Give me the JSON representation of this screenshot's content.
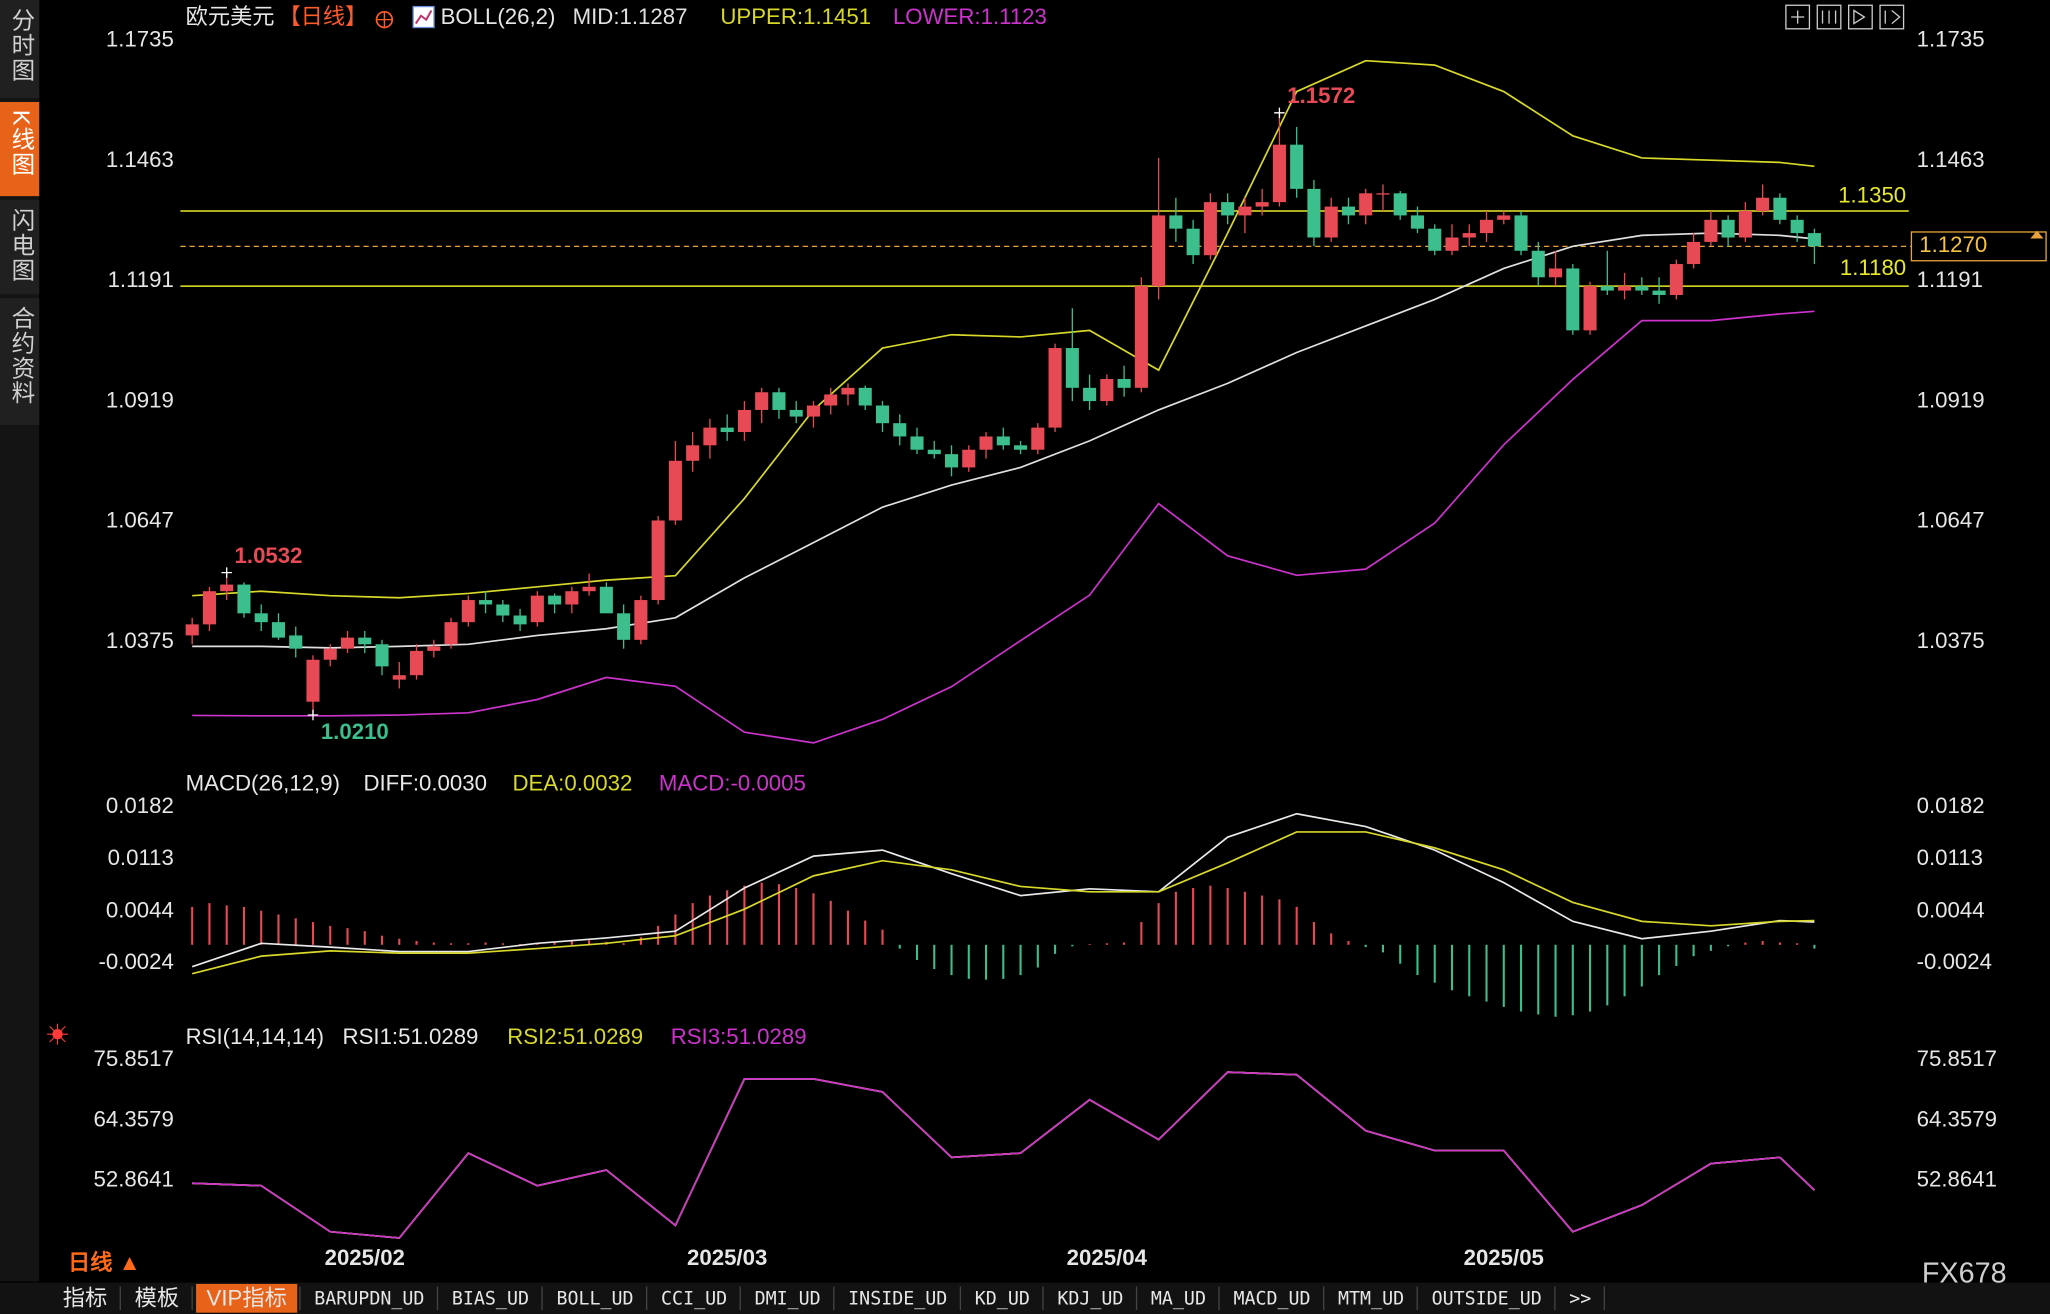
{
  "ui": {
    "side_tabs": [
      "分时图",
      "K线图",
      "闪电图",
      "合约资料"
    ],
    "active_side_tab": 1,
    "bottom_tabs": [
      "指标",
      "模板",
      "VIP指标",
      "BARUPDN_UD",
      "BIAS_UD",
      "BOLL_UD",
      "CCI_UD",
      "DMI_UD",
      "INSIDE_UD",
      "KD_UD",
      "KDJ_UD",
      "MA_UD",
      "MACD_UD",
      "MTM_UD",
      "OUTSIDE_UD",
      ">>"
    ],
    "active_bottom_tab": 2,
    "timeframe": "日线 ▲",
    "watermark": "FX678"
  },
  "chart_data": [
    {
      "type": "candlestick",
      "title": "欧元美元",
      "period": "【日线】",
      "indicator": "BOLL(26,2)",
      "up_color": "#e84a55",
      "down_color": "#3cbf8c",
      "grid": false,
      "categories": [
        null,
        null,
        null,
        null,
        null,
        null,
        null,
        null,
        null,
        null,
        "2025/02",
        null,
        null,
        null,
        null,
        null,
        null,
        null,
        null,
        null,
        null,
        null,
        null,
        null,
        null,
        null,
        null,
        null,
        null,
        null,
        null,
        "2025/03",
        null,
        null,
        null,
        null,
        null,
        null,
        null,
        null,
        null,
        null,
        null,
        null,
        null,
        null,
        null,
        null,
        null,
        null,
        null,
        null,
        null,
        "2025/04",
        null,
        null,
        null,
        null,
        null,
        null,
        null,
        null,
        null,
        null,
        null,
        null,
        null,
        null,
        null,
        null,
        null,
        null,
        null,
        null,
        null,
        null,
        "2025/05",
        null,
        null,
        null,
        null,
        null,
        null,
        null,
        null,
        null,
        null,
        null,
        null,
        null,
        null,
        null,
        null,
        null,
        null
      ],
      "open": [
        1.039,
        1.0415,
        1.049,
        1.0505,
        1.044,
        1.042,
        1.039,
        1.024,
        1.0335,
        1.036,
        1.0385,
        1.037,
        1.029,
        1.03,
        1.0355,
        1.037,
        1.042,
        1.047,
        1.046,
        1.0435,
        1.042,
        1.048,
        1.046,
        1.049,
        1.05,
        1.044,
        1.038,
        1.047,
        1.065,
        1.0785,
        1.082,
        1.086,
        1.085,
        1.09,
        1.094,
        1.09,
        1.0885,
        1.091,
        1.0935,
        1.095,
        1.091,
        1.087,
        1.084,
        1.081,
        1.08,
        1.077,
        1.081,
        1.084,
        1.082,
        1.081,
        1.086,
        1.104,
        1.095,
        1.092,
        1.097,
        1.095,
        1.118,
        1.134,
        1.131,
        1.125,
        1.137,
        1.134,
        1.136,
        1.137,
        1.15,
        1.14,
        1.129,
        1.136,
        1.134,
        1.139,
        1.139,
        1.134,
        1.131,
        1.126,
        1.129,
        1.13,
        1.133,
        1.134,
        1.126,
        1.12,
        1.122,
        1.108,
        1.118,
        1.117,
        1.118,
        1.117,
        1.116,
        1.123,
        1.128,
        1.133,
        1.129,
        1.135,
        1.138,
        1.133,
        1.13
      ],
      "high": [
        1.043,
        1.05,
        1.0532,
        1.051,
        1.046,
        1.044,
        1.041,
        1.0345,
        1.037,
        1.04,
        1.04,
        1.038,
        1.033,
        1.037,
        1.038,
        1.043,
        1.048,
        1.049,
        1.047,
        1.045,
        1.049,
        1.0485,
        1.05,
        1.053,
        1.051,
        1.046,
        1.048,
        1.066,
        1.083,
        1.085,
        1.088,
        1.089,
        1.092,
        1.095,
        1.095,
        1.092,
        1.092,
        1.095,
        1.096,
        1.0955,
        1.092,
        1.089,
        1.086,
        1.083,
        1.082,
        1.082,
        1.085,
        1.086,
        1.083,
        1.087,
        1.105,
        1.113,
        1.098,
        1.098,
        1.1,
        1.12,
        1.147,
        1.138,
        1.133,
        1.139,
        1.139,
        1.138,
        1.14,
        1.1572,
        1.154,
        1.142,
        1.138,
        1.138,
        1.14,
        1.141,
        1.1395,
        1.136,
        1.132,
        1.132,
        1.132,
        1.135,
        1.135,
        1.135,
        1.128,
        1.126,
        1.123,
        1.119,
        1.126,
        1.121,
        1.12,
        1.12,
        1.124,
        1.13,
        1.135,
        1.134,
        1.137,
        1.141,
        1.139,
        1.134,
        1.131
      ],
      "low": [
        1.037,
        1.04,
        1.047,
        1.043,
        1.04,
        1.038,
        1.034,
        1.021,
        1.032,
        1.035,
        1.035,
        1.03,
        1.027,
        1.029,
        1.034,
        1.036,
        1.041,
        1.044,
        1.042,
        1.04,
        1.041,
        1.044,
        1.044,
        1.048,
        1.044,
        1.036,
        1.037,
        1.046,
        1.064,
        1.076,
        1.079,
        1.083,
        1.083,
        1.087,
        1.088,
        1.087,
        1.086,
        1.089,
        1.091,
        1.09,
        1.085,
        1.082,
        1.08,
        1.079,
        1.075,
        1.076,
        1.079,
        1.081,
        1.08,
        1.08,
        1.085,
        1.092,
        1.09,
        1.091,
        1.093,
        1.094,
        1.115,
        1.128,
        1.123,
        1.124,
        1.132,
        1.13,
        1.134,
        1.136,
        1.138,
        1.127,
        1.128,
        1.132,
        1.132,
        1.135,
        1.133,
        1.13,
        1.125,
        1.125,
        1.127,
        1.128,
        1.132,
        1.125,
        1.118,
        1.118,
        1.107,
        1.107,
        1.116,
        1.115,
        1.116,
        1.114,
        1.115,
        1.122,
        1.127,
        1.127,
        1.128,
        1.134,
        1.132,
        1.128,
        1.123
      ],
      "close": [
        1.0415,
        1.049,
        1.0505,
        1.044,
        1.042,
        1.0385,
        1.036,
        1.0335,
        1.036,
        1.0385,
        1.037,
        1.032,
        1.03,
        1.0355,
        1.0365,
        1.042,
        1.047,
        1.046,
        1.0435,
        1.0415,
        1.048,
        1.046,
        1.049,
        1.05,
        1.044,
        1.038,
        1.047,
        1.065,
        1.0785,
        1.082,
        1.086,
        1.085,
        1.09,
        1.094,
        1.09,
        1.0885,
        1.091,
        1.0935,
        1.095,
        1.091,
        1.087,
        1.084,
        1.081,
        1.08,
        1.077,
        1.081,
        1.084,
        1.082,
        1.081,
        1.086,
        1.104,
        1.095,
        1.092,
        1.097,
        1.095,
        1.118,
        1.134,
        1.131,
        1.125,
        1.137,
        1.134,
        1.136,
        1.137,
        1.15,
        1.14,
        1.129,
        1.136,
        1.134,
        1.139,
        1.139,
        1.134,
        1.131,
        1.126,
        1.129,
        1.13,
        1.133,
        1.134,
        1.126,
        1.12,
        1.122,
        1.108,
        1.118,
        1.117,
        1.118,
        1.117,
        1.116,
        1.123,
        1.128,
        1.133,
        1.129,
        1.135,
        1.138,
        1.133,
        1.13,
        1.127
      ],
      "x": [
        0,
        4,
        8,
        12,
        16,
        20,
        24,
        28,
        32,
        36,
        40,
        44,
        48,
        52,
        56,
        60,
        64,
        68,
        72,
        76,
        80,
        84,
        88,
        92,
        94
      ],
      "series": [
        {
          "name": "MID:1.1287",
          "color": "#e0e0e0",
          "values": [
            1.0365,
            1.0365,
            1.0362,
            1.0365,
            1.037,
            1.039,
            1.0405,
            1.043,
            1.052,
            1.06,
            1.068,
            1.073,
            1.077,
            1.083,
            1.09,
            1.096,
            1.103,
            1.109,
            1.115,
            1.122,
            1.127,
            1.1295,
            1.13,
            1.1295,
            1.1287
          ]
        },
        {
          "name": "UPPER:1.1451",
          "color": "#d8d82a",
          "values": [
            1.048,
            1.049,
            1.048,
            1.0475,
            1.0485,
            1.05,
            1.0515,
            1.0525,
            1.07,
            1.09,
            1.104,
            1.107,
            1.1065,
            1.108,
            1.099,
            1.13,
            1.162,
            1.169,
            1.168,
            1.162,
            1.152,
            1.147,
            1.1465,
            1.146,
            1.1451
          ]
        },
        {
          "name": "LOWER:1.1123",
          "color": "#cc33cc",
          "values": [
            1.0209,
            1.0208,
            1.0208,
            1.021,
            1.0215,
            1.0245,
            1.0295,
            1.0275,
            1.0171,
            1.0147,
            1.02,
            1.0274,
            1.0378,
            1.0481,
            1.0688,
            1.057,
            1.0526,
            1.054,
            1.0644,
            1.0821,
            1.0969,
            1.1102,
            1.1102,
            1.1117,
            1.1123
          ]
        }
      ],
      "hlines": [
        {
          "value": 1.135,
          "label": "1.1350",
          "color": "#e8e82a"
        },
        {
          "value": 1.118,
          "label": "1.1180",
          "color": "#e8e82a"
        }
      ],
      "last_price": {
        "value": 1.127,
        "label": "1.1270",
        "color": "#e8a33a"
      },
      "annotations": [
        {
          "x": 2,
          "value": 1.0532,
          "label": "1.0532",
          "color": "#e84a55"
        },
        {
          "x": 7,
          "value": 1.021,
          "label": "1.0210",
          "color": "#3cbf8c"
        },
        {
          "x": 63,
          "value": 1.1572,
          "label": "1.1572",
          "color": "#e84a55"
        }
      ],
      "ylim": [
        1.0112,
        1.1768
      ],
      "yticks": [
        1.0375,
        1.0647,
        1.0919,
        1.1191,
        1.1463,
        1.1735
      ]
    },
    {
      "type": "line",
      "indicator": "MACD(26,12,9)",
      "grid": false,
      "x": [
        0,
        4,
        8,
        12,
        16,
        20,
        24,
        28,
        32,
        36,
        40,
        44,
        48,
        52,
        56,
        60,
        64,
        68,
        72,
        76,
        80,
        84,
        88,
        92,
        94
      ],
      "series": [
        {
          "name": "DIFF:0.0030",
          "color": "#e8e8e8",
          "values": [
            -0.0029,
            0.0002,
            -0.0003,
            -0.0009,
            -0.0009,
            0.0002,
            0.0009,
            0.0018,
            0.0075,
            0.0117,
            0.0125,
            0.0094,
            0.0065,
            0.0074,
            0.007,
            0.0142,
            0.0173,
            0.0156,
            0.0125,
            0.0082,
            0.0031,
            0.0008,
            0.0018,
            0.0032,
            0.003
          ]
        },
        {
          "name": "DEA:0.0032",
          "color": "#d8d82a",
          "values": [
            -0.0038,
            -0.0015,
            -0.0008,
            -0.0011,
            -0.0011,
            -0.0005,
            0.0002,
            0.0012,
            0.0047,
            0.0091,
            0.0111,
            0.0099,
            0.0077,
            0.007,
            0.007,
            0.0108,
            0.0149,
            0.0149,
            0.0128,
            0.0099,
            0.0056,
            0.0031,
            0.0025,
            0.0031,
            0.0032
          ]
        }
      ],
      "histogram": {
        "name": "MACD:-0.0005",
        "color": "#cc33cc",
        "up_color": "#e84a55",
        "down_color": "#3cbf8c",
        "values": [
          0.005,
          0.0055,
          0.0052,
          0.005,
          0.0045,
          0.004,
          0.0035,
          0.003,
          0.0025,
          0.0022,
          0.0018,
          0.0012,
          0.0008,
          0.0005,
          0.0003,
          0.0002,
          0.0002,
          0.0003,
          0.0002,
          0.0001,
          0.0002,
          0.0004,
          0.0005,
          0.0006,
          0.0004,
          0.0002,
          0.001,
          0.0025,
          0.004,
          0.0055,
          0.0065,
          0.0072,
          0.0078,
          0.0082,
          0.008,
          0.0075,
          0.0068,
          0.0058,
          0.0045,
          0.0032,
          0.002,
          -0.0005,
          -0.002,
          -0.0032,
          -0.004,
          -0.0045,
          -0.0046,
          -0.0045,
          -0.004,
          -0.003,
          -0.0012,
          -0.0002,
          0.0001,
          0.0002,
          0.0003,
          0.003,
          0.0055,
          0.007,
          0.0075,
          0.0078,
          0.0075,
          0.007,
          0.0065,
          0.006,
          0.005,
          0.003,
          0.0015,
          0.0005,
          -0.0003,
          -0.001,
          -0.0025,
          -0.004,
          -0.005,
          -0.006,
          -0.0068,
          -0.0075,
          -0.0082,
          -0.0088,
          -0.0092,
          -0.0095,
          -0.0093,
          -0.0088,
          -0.008,
          -0.0068,
          -0.0055,
          -0.004,
          -0.0028,
          -0.0015,
          -0.0008,
          -0.0002,
          0.0003,
          0.0005,
          0.0003,
          0.0002,
          -0.0005
        ]
      },
      "ylim": [
        -0.0099,
        0.0203
      ],
      "yticks": [
        0.0182,
        0.0113,
        0.0044,
        -0.0024
      ]
    },
    {
      "type": "line",
      "indicator": "RSI(14,14,14)",
      "grid": false,
      "x": [
        0,
        4,
        8,
        12,
        16,
        20,
        24,
        28,
        32,
        36,
        40,
        44,
        48,
        52,
        56,
        60,
        64,
        68,
        72,
        76,
        80,
        84,
        88,
        92,
        94
      ],
      "series": [
        {
          "name": "RSI1:51.0289",
          "color": "#e8e8e8",
          "values": [
            52.36,
            51.9,
            43.1,
            41.9,
            58.1,
            51.9,
            54.9,
            44.3,
            72.3,
            72.3,
            69.8,
            57.3,
            58.1,
            68.3,
            60.7,
            73.6,
            73.1,
            62.4,
            58.6,
            58.6,
            43.1,
            48.2,
            56.1,
            57.3,
            51.0289
          ]
        },
        {
          "name": "RSI2:51.0289",
          "color": "#d8d82a",
          "values": [
            52.36,
            51.9,
            43.1,
            41.9,
            58.1,
            51.9,
            54.9,
            44.3,
            72.3,
            72.3,
            69.8,
            57.3,
            58.1,
            68.3,
            60.7,
            73.6,
            73.1,
            62.4,
            58.6,
            58.6,
            43.1,
            48.2,
            56.1,
            57.3,
            51.0289
          ]
        },
        {
          "name": "RSI3:51.0289",
          "color": "#cc33cc",
          "values": [
            52.36,
            51.9,
            43.1,
            41.9,
            58.1,
            51.9,
            54.9,
            44.3,
            72.3,
            72.3,
            69.8,
            57.3,
            58.1,
            68.3,
            60.7,
            73.6,
            73.1,
            62.4,
            58.6,
            58.6,
            43.1,
            48.2,
            56.1,
            57.3,
            51.0289
          ]
        }
      ],
      "ylim": [
        41.12,
        78.6
      ],
      "yticks": [
        75.8517,
        64.3579,
        52.8641
      ]
    }
  ]
}
